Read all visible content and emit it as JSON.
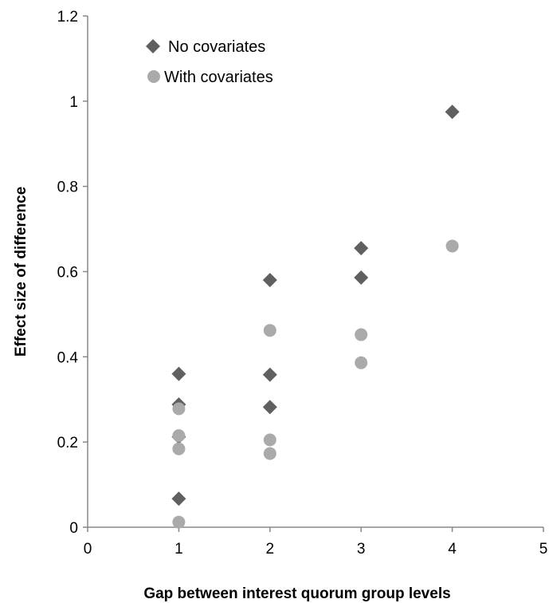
{
  "chart_data": {
    "type": "scatter",
    "title": "",
    "xlabel": "Gap between interest quorum group levels",
    "ylabel": "Effect size of difference",
    "xlim": [
      0,
      5
    ],
    "ylim": [
      0,
      1.2
    ],
    "x_ticks": [
      0,
      1,
      2,
      3,
      4,
      5
    ],
    "y_ticks": [
      0,
      0.2,
      0.4,
      0.6,
      0.8,
      1,
      1.2
    ],
    "x_tick_labels": [
      "0",
      "1",
      "2",
      "3",
      "4",
      "5"
    ],
    "y_tick_labels": [
      "0",
      "0.2",
      "0.4",
      "0.6",
      "0.8",
      "1",
      "1.2"
    ],
    "grid": false,
    "legend_position": "top-left",
    "series": [
      {
        "name": "No covariates",
        "marker": "diamond",
        "color": "#606060",
        "points": [
          {
            "x": 1,
            "y": 0.36
          },
          {
            "x": 1,
            "y": 0.288
          },
          {
            "x": 1,
            "y": 0.212
          },
          {
            "x": 1,
            "y": 0.067
          },
          {
            "x": 2,
            "y": 0.58
          },
          {
            "x": 2,
            "y": 0.358
          },
          {
            "x": 2,
            "y": 0.282
          },
          {
            "x": 3,
            "y": 0.655
          },
          {
            "x": 3,
            "y": 0.586
          },
          {
            "x": 4,
            "y": 0.975
          }
        ]
      },
      {
        "name": "With covariates",
        "marker": "circle",
        "color": "#aaaaaa",
        "points": [
          {
            "x": 1,
            "y": 0.278
          },
          {
            "x": 1,
            "y": 0.215
          },
          {
            "x": 1,
            "y": 0.184
          },
          {
            "x": 1,
            "y": 0.012
          },
          {
            "x": 2,
            "y": 0.462
          },
          {
            "x": 2,
            "y": 0.205
          },
          {
            "x": 2,
            "y": 0.173
          },
          {
            "x": 3,
            "y": 0.452
          },
          {
            "x": 3,
            "y": 0.386
          },
          {
            "x": 4,
            "y": 0.66
          }
        ]
      }
    ]
  }
}
